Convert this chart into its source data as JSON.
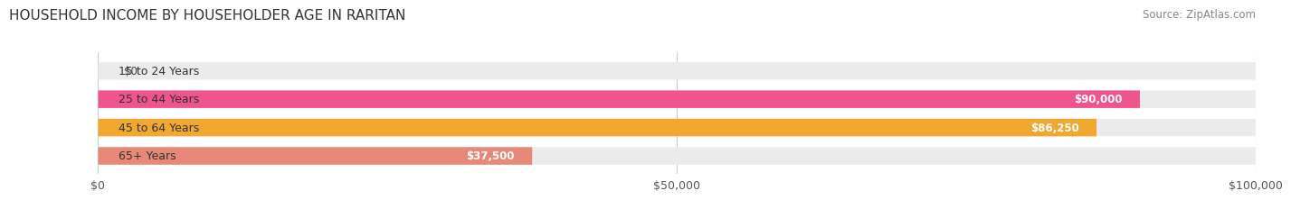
{
  "title": "HOUSEHOLD INCOME BY HOUSEHOLDER AGE IN RARITAN",
  "source": "Source: ZipAtlas.com",
  "categories": [
    "15 to 24 Years",
    "25 to 44 Years",
    "45 to 64 Years",
    "65+ Years"
  ],
  "values": [
    0,
    90000,
    86250,
    37500
  ],
  "bar_colors": [
    "#a0a8d4",
    "#f0548c",
    "#f0a830",
    "#e88878"
  ],
  "bar_bg_color": "#ebebeb",
  "value_labels": [
    "$0",
    "$90,000",
    "$86,250",
    "$37,500"
  ],
  "x_ticks": [
    0,
    50000,
    100000
  ],
  "x_tick_labels": [
    "$0",
    "$50,000",
    "$100,000"
  ],
  "xlim": [
    0,
    100000
  ],
  "background_color": "#ffffff",
  "title_fontsize": 11,
  "source_fontsize": 8.5,
  "label_fontsize": 9,
  "value_fontsize": 8.5,
  "tick_fontsize": 9
}
